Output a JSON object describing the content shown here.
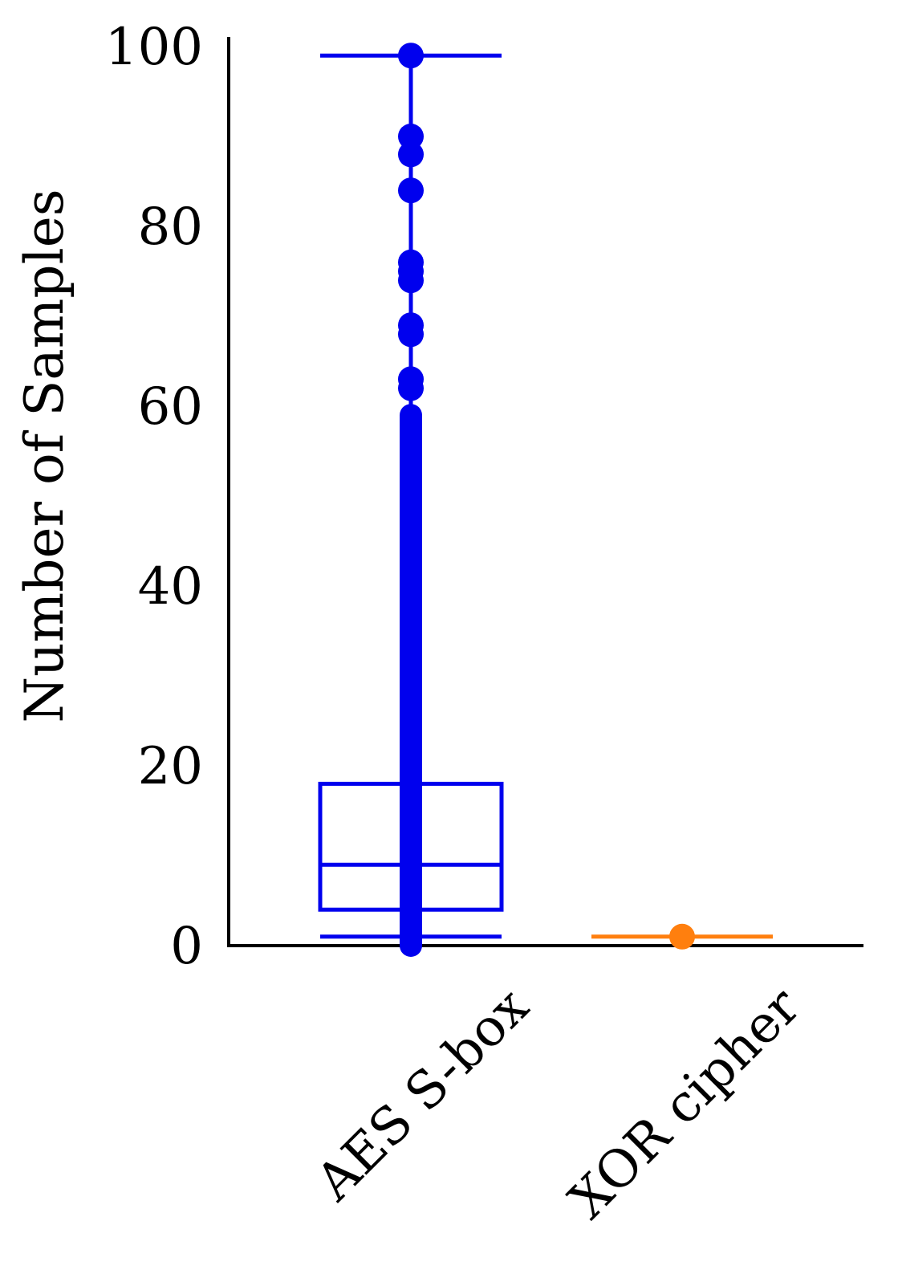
{
  "chart_data": {
    "type": "box",
    "title": "",
    "xlabel": "",
    "ylabel": "Number of Samples",
    "ylim": [
      0,
      100
    ],
    "yticks": [
      0,
      20,
      40,
      60,
      80,
      100
    ],
    "grid": false,
    "legend": "none",
    "categories": [
      "AES S-box",
      "XOR cipher"
    ],
    "series": [
      {
        "category": "AES S-box",
        "color": "#0000ee",
        "whisker_low": 1,
        "q1": 4,
        "median": 9,
        "q3": 18,
        "whisker_high": 99,
        "outlier_dense_range": [
          0,
          59
        ],
        "outliers": [
          62,
          63,
          68,
          69,
          74,
          75,
          76,
          84,
          88,
          90,
          99
        ]
      },
      {
        "category": "XOR cipher",
        "color": "#ff7f0e",
        "whisker_low": 1,
        "q1": 1,
        "median": 1,
        "q3": 1,
        "whisker_high": 1,
        "outliers": [
          1
        ]
      }
    ]
  }
}
